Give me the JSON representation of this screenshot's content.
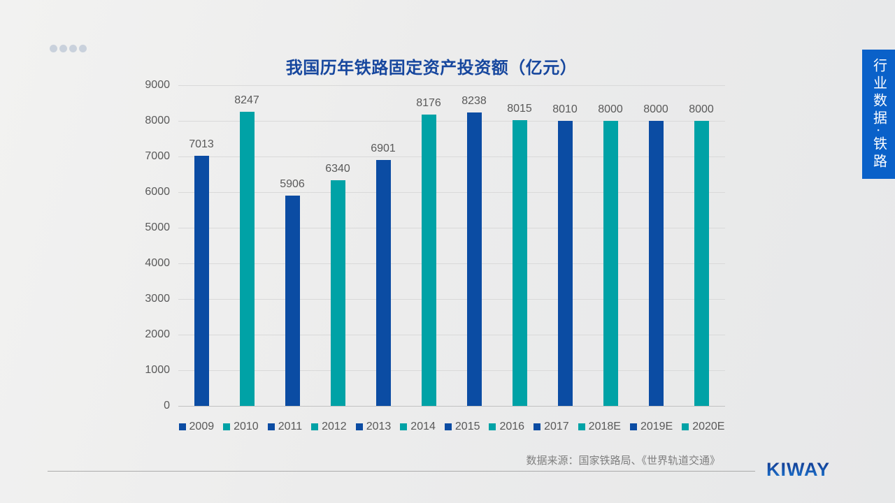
{
  "slide": {
    "title": "我国历年铁路固定资产投资额（亿元）",
    "source_note": "数据来源：国家铁路局、《世界轨道交通》",
    "side_banner_text": "行业数据·铁路",
    "logo_text": "KIWAY"
  },
  "colors": {
    "bar_blue": "#0b4ca3",
    "bar_teal": "#00a2a6",
    "title_text": "#17479e",
    "axis_text": "#595959",
    "gridline": "#d9d9d9",
    "banner_bg": "#0a61c9",
    "banner_text": "#ffffff",
    "source_text": "#7f7f7f"
  },
  "chart_data": {
    "type": "bar",
    "title": "我国历年铁路固定资产投资额（亿元）",
    "categories": [
      "2009",
      "2010",
      "2011",
      "2012",
      "2013",
      "2014",
      "2015",
      "2016",
      "2017",
      "2018E",
      "2019E",
      "2020E"
    ],
    "values": [
      7013,
      8247,
      5906,
      6340,
      6901,
      8176,
      8238,
      8015,
      8010,
      8000,
      8000,
      8000
    ],
    "palette": [
      "#0b4ca3",
      "#00a2a6"
    ],
    "xlabel": "",
    "ylabel": "",
    "ylim": [
      0,
      9000
    ],
    "ytick_step": 1000,
    "grid": true,
    "legend_position": "bottom",
    "value_labels": true
  }
}
